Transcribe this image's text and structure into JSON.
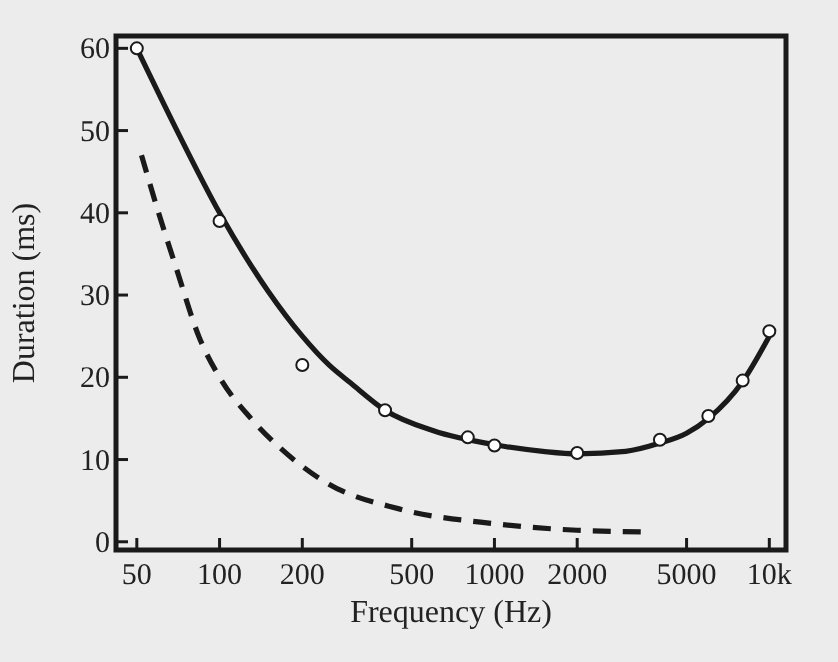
{
  "chart_data": {
    "type": "line",
    "xlabel": "Frequency (Hz)",
    "ylabel": "Duration (ms)",
    "log": "x",
    "grid": false,
    "xlim": [
      42,
      11500
    ],
    "ylim": [
      -1,
      61.5
    ],
    "xticks": [
      50,
      100,
      200,
      500,
      1000,
      2000,
      5000,
      {
        "value": 10000,
        "label": "10k"
      }
    ],
    "yticks": [
      0,
      10,
      20,
      30,
      40,
      50,
      60
    ],
    "series": [
      {
        "color": "#1a1a1a",
        "line_style": "solid",
        "marker": "none",
        "x": [
          50,
          70,
          100,
          150,
          200,
          250,
          300,
          400,
          600,
          1000,
          1500,
          2000,
          3000,
          4000,
          5000,
          6000,
          8000,
          10000
        ],
        "values": [
          60,
          50,
          40,
          30.5,
          25,
          21.5,
          19.3,
          16,
          13.5,
          11.8,
          11,
          10.7,
          11,
          12,
          13.2,
          15,
          19.5,
          25
        ]
      },
      {
        "color": "#1a1a1a",
        "line_style": "dashed",
        "marker": "none",
        "x": [
          52,
          60,
          70,
          84,
          100,
          130,
          165,
          250,
          450,
          1000,
          2000,
          3600
        ],
        "values": [
          47,
          40,
          33,
          25,
          20,
          15,
          11.5,
          7,
          4,
          2.2,
          1.4,
          1.2
        ]
      },
      {
        "type": "scatter",
        "color": "#1a1a1a",
        "marker": "circle",
        "x": [
          50,
          100,
          200,
          400,
          800,
          1000,
          2000,
          4000,
          6000,
          8000,
          10000
        ],
        "values": [
          60,
          39,
          21.5,
          16,
          12.7,
          11.7,
          10.8,
          12.4,
          15.3,
          19.6,
          25.6
        ]
      }
    ]
  }
}
